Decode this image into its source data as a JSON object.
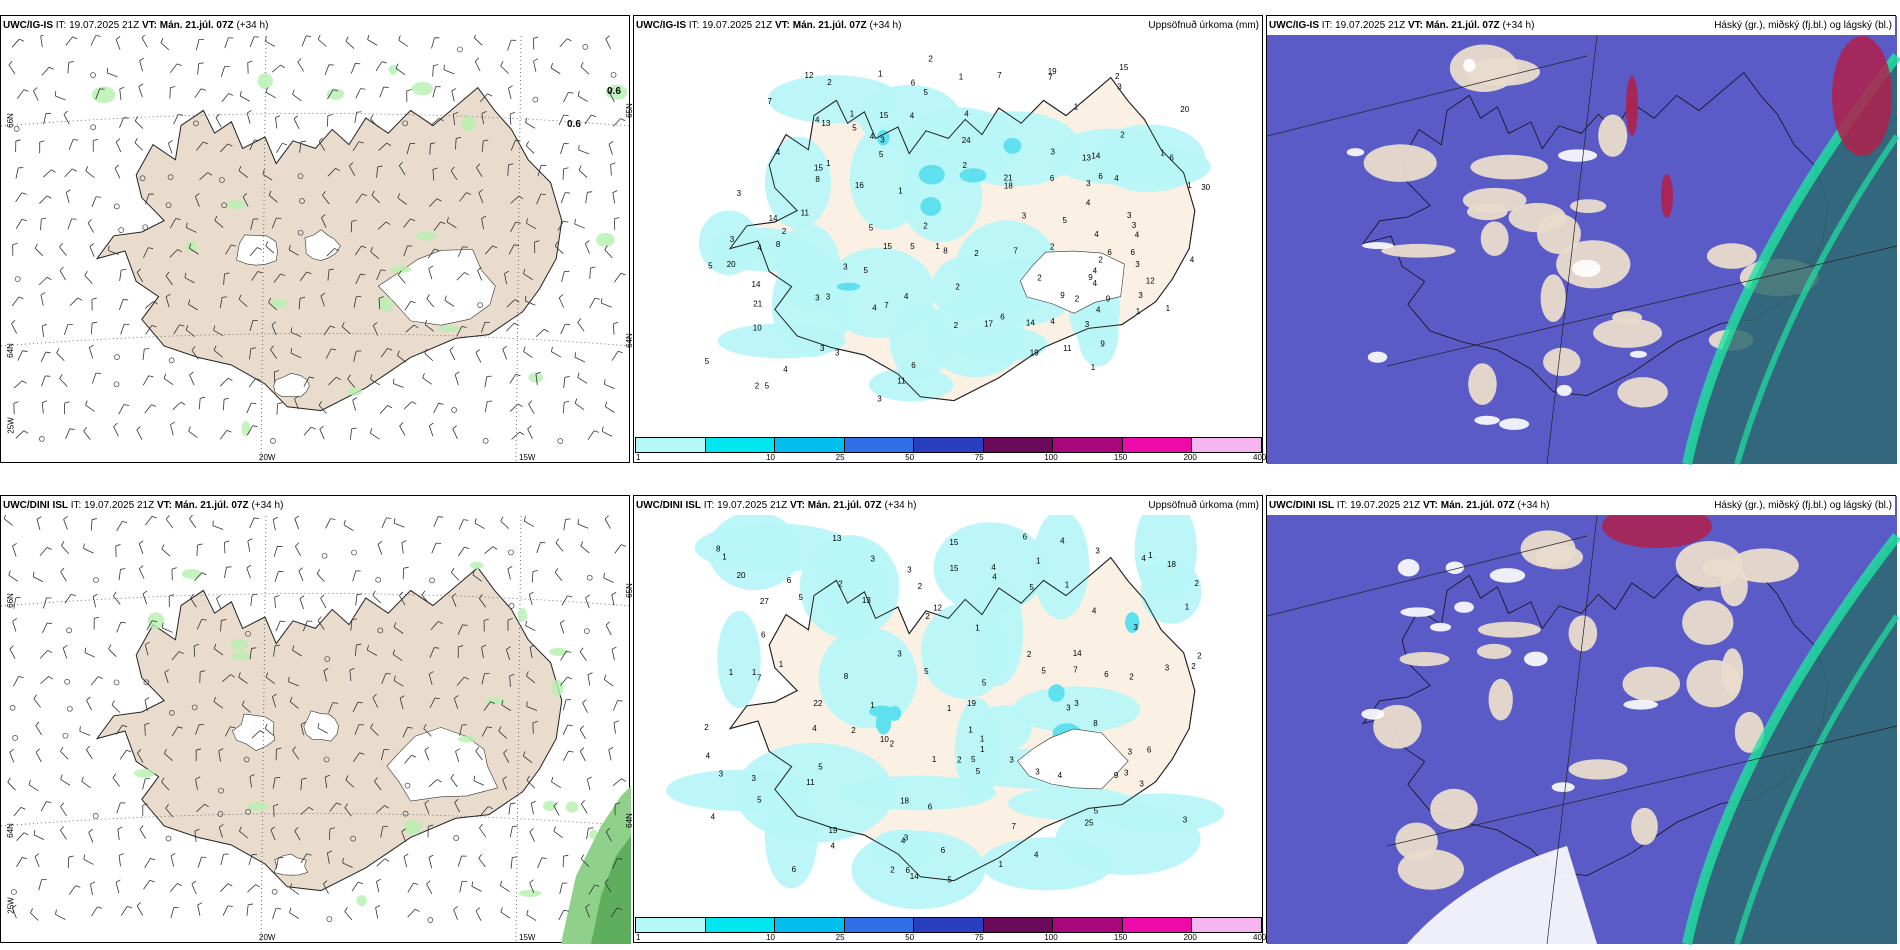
{
  "panels": [
    {
      "model": "UWC/IG-IS",
      "it_label": "IT:",
      "it_value": "19.07.2025 21Z",
      "vt_label": "VT:",
      "vt_value": "Mán. 21.júl. 07Z",
      "lead": "(+34 h)",
      "right_title": "",
      "kind": "wind",
      "extra_labels": [
        "0.6",
        "0.6"
      ],
      "lat_labels": [
        "66N",
        "64N",
        "65N",
        "64N"
      ],
      "lon_labels": [
        "25W",
        "20W",
        "15W"
      ]
    },
    {
      "model": "UWC/IG-IS",
      "it_label": "IT:",
      "it_value": "19.07.2025 21Z",
      "vt_label": "VT:",
      "vt_value": "Mán. 21.júl. 07Z",
      "lead": "(+34 h)",
      "right_title": "Uppsöfnuð úrkoma (mm)",
      "kind": "precip",
      "numbers": [
        "2",
        "3",
        "1",
        "8",
        "7",
        "8",
        "20",
        "2",
        "4",
        "3",
        "3",
        "5",
        "4",
        "1",
        "6",
        "7",
        "1",
        "3",
        "4",
        "3",
        "5",
        "6",
        "5",
        "2",
        "6",
        "4",
        "1",
        "19",
        "4",
        "3",
        "1",
        "4",
        "3",
        "2",
        "1",
        "14",
        "5",
        "10",
        "4",
        "5",
        "5",
        "2",
        "6",
        "3",
        "1",
        "4",
        "1",
        "14",
        "4",
        "3",
        "9",
        "6",
        "2",
        "21",
        "3",
        "24",
        "7",
        "20",
        "14",
        "1",
        "19",
        "15",
        "12",
        "16",
        "21",
        "30",
        "14",
        "15",
        "8",
        "2",
        "11",
        "15",
        "13",
        "18",
        "5",
        "3",
        "9",
        "6",
        "13",
        "4",
        "2",
        "7",
        "2",
        "17",
        "3",
        "3",
        "4",
        "12",
        "11",
        "5",
        "6",
        "15",
        "11",
        "4",
        "2",
        "1",
        "2",
        "4",
        "4",
        "7",
        "2",
        "9",
        "5",
        "4",
        "3",
        "6",
        "2",
        "1",
        "1",
        "9",
        "4",
        "3",
        "4",
        "2",
        "5",
        "3",
        "3",
        "4",
        "3",
        "2"
      ]
    },
    {
      "model": "UWC/IG-IS",
      "it_label": "IT:",
      "it_value": "19.07.2025 21Z",
      "vt_label": "VT:",
      "vt_value": "Mán. 21.júl. 07Z",
      "lead": "(+34 h)",
      "right_title": "Háský (gr.), miðský (fj.bl.) og lágský (bl.)",
      "kind": "cloud"
    },
    {
      "model": "UWC/DINI ISL",
      "it_label": "IT:",
      "it_value": "19.07.2025 21Z",
      "vt_label": "VT:",
      "vt_value": "Mán. 21.júl. 07Z",
      "lead": "(+34 h)",
      "right_title": "",
      "kind": "wind",
      "extra_labels": [],
      "lat_labels": [
        "66N",
        "64N",
        "65N",
        "64N"
      ],
      "lon_labels": [
        "25W",
        "20W",
        "15W"
      ]
    },
    {
      "model": "UWC/DINI ISL",
      "it_label": "IT:",
      "it_value": "19.07.2025 21Z",
      "vt_label": "VT:",
      "vt_value": "Mán. 21.júl. 07Z",
      "lead": "(+34 h)",
      "right_title": "Uppsöfnuð úrkoma (mm)",
      "kind": "precip",
      "numbers": [
        "12",
        "7",
        "1",
        "4",
        "3",
        "2",
        "25",
        "5",
        "4",
        "20",
        "18",
        "3",
        "19",
        "6",
        "5",
        "2",
        "3",
        "5",
        "1",
        "3",
        "4",
        "14",
        "27",
        "4",
        "6",
        "1",
        "4",
        "3",
        "13",
        "22",
        "15",
        "14",
        "19",
        "6",
        "1",
        "2",
        "3",
        "6",
        "5",
        "5",
        "8",
        "18",
        "6",
        "1",
        "5",
        "4",
        "2",
        "13",
        "3",
        "7",
        "6",
        "10",
        "3",
        "1",
        "2",
        "4",
        "5",
        "5",
        "6",
        "4",
        "9",
        "2",
        "5",
        "3",
        "1",
        "1",
        "2",
        "3",
        "15",
        "11",
        "4",
        "1",
        "2",
        "1",
        "5",
        "6",
        "7",
        "8",
        "2",
        "1",
        "2",
        "3",
        "1",
        "3",
        "4",
        "3",
        "6",
        "3",
        "2",
        "1",
        "8",
        "5",
        "4",
        "4",
        "3",
        "3",
        "3",
        "2",
        "1",
        "1",
        "1",
        "2"
      ]
    },
    {
      "model": "UWC/DINI ISL",
      "it_label": "IT:",
      "it_value": "19.07.2025 21Z",
      "vt_label": "VT:",
      "vt_value": "Mán. 21.júl. 07Z",
      "lead": "(+34 h)",
      "right_title": "Háský (gr.), miðský (fj.bl.) og lágský (bl.)",
      "kind": "cloud"
    }
  ],
  "colorbar": {
    "ticks": [
      "1",
      "10",
      "25",
      "50",
      "75",
      "100",
      "150",
      "200",
      "400"
    ],
    "colors": [
      "#b3f7f7",
      "#00e5ee",
      "#00bfee",
      "#2f6fe8",
      "#2a3fc0",
      "#6b0a5a",
      "#a8087e",
      "#ee0aa8",
      "#f5b5ee"
    ]
  },
  "colors": {
    "land": "#e9dccc",
    "land_light": "#fbf0e4",
    "precip_light": "#b8f5f8",
    "precip_mid": "#5fe0ef",
    "cloud_high": "#5b5bc8",
    "cloud_mid": "#1fe3a0",
    "cloud_low": "#2d6a70",
    "cloud_red": "#b0204a"
  }
}
